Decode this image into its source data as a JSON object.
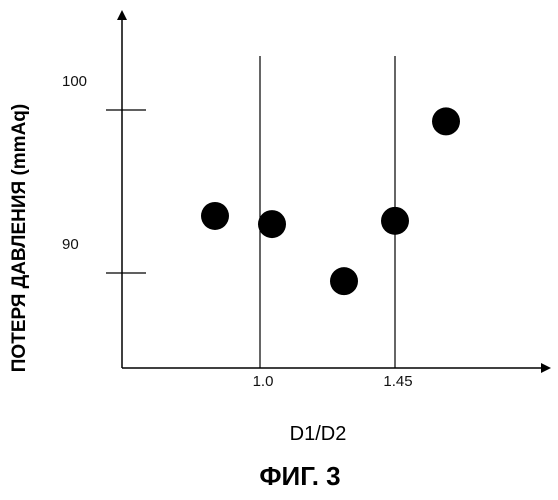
{
  "chart_data": {
    "type": "scatter",
    "title": "",
    "ylabel": "ПОТЕРЯ ДАВЛЕНИЯ (mmAq)",
    "xlabel": "D1/D2",
    "caption": "ФИГ. 3",
    "x_ticks": [
      {
        "value": 1.0,
        "label": "1.0"
      },
      {
        "value": 1.45,
        "label": "1.45"
      }
    ],
    "y_ticks": [
      {
        "value": 100,
        "label": "100"
      },
      {
        "value": 90,
        "label": "90"
      }
    ],
    "reference_lines_x": [
      1.0,
      1.45
    ],
    "xlim": [
      0.75,
      1.9
    ],
    "ylim": [
      84,
      105.5
    ],
    "grid": false,
    "legend": "none",
    "marker_color": "#000000",
    "points": [
      {
        "x": 0.85,
        "y": 93.5
      },
      {
        "x": 1.04,
        "y": 93.0
      },
      {
        "x": 1.28,
        "y": 89.5
      },
      {
        "x": 1.45,
        "y": 93.2
      },
      {
        "x": 1.62,
        "y": 99.3
      }
    ]
  }
}
